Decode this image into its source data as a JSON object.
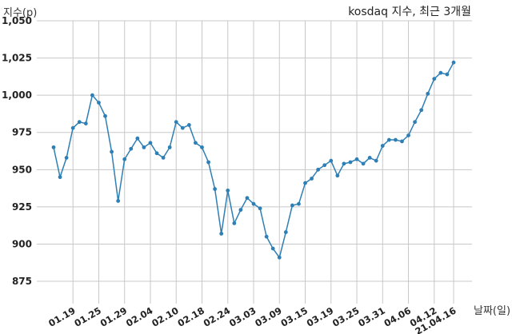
{
  "chart_data": {
    "type": "line",
    "title": "kosdaq 지수, 최근 3개월",
    "ylabel": "지수(p)",
    "xlabel": "날짜(일)",
    "ylim": [
      860,
      1050
    ],
    "yticks": [
      875,
      900,
      925,
      950,
      975,
      1000,
      1025,
      1050
    ],
    "ytick_labels": [
      "875",
      "900",
      "925",
      "950",
      "975",
      "1,000",
      "1,025",
      "1,050"
    ],
    "xtick_labels": [
      "01.19",
      "01.25",
      "01.29",
      "02.04",
      "02.10",
      "02.18",
      "02.24",
      "03.03",
      "03.09",
      "03.15",
      "03.19",
      "03.25",
      "03.31",
      "04.06",
      "04.12",
      "21.04.16"
    ],
    "xtick_index": [
      3,
      7,
      11,
      15,
      19,
      23,
      27,
      31,
      35,
      39,
      43,
      47,
      51,
      55,
      59,
      62
    ],
    "grid": true,
    "series": [
      {
        "color": "#2e7fb5",
        "values": [
          965,
          945,
          958,
          978,
          982,
          981,
          1000,
          995,
          986,
          962,
          929,
          957,
          964,
          971,
          965,
          968,
          961,
          958,
          965,
          982,
          978,
          980,
          968,
          965,
          955,
          937,
          907,
          936,
          914,
          923,
          931,
          927,
          924,
          905,
          897,
          891,
          908,
          926,
          927,
          941,
          944,
          950,
          953,
          956,
          946,
          954,
          955,
          957,
          954,
          958,
          956,
          966,
          970,
          970,
          969,
          973,
          982,
          990,
          1001,
          1011,
          1015,
          1014,
          1022
        ]
      }
    ]
  }
}
